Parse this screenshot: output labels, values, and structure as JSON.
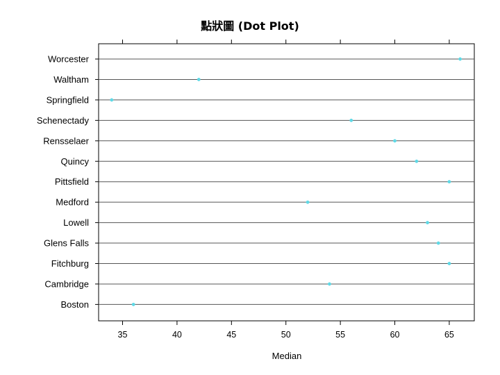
{
  "chart_data": {
    "type": "scatter",
    "title": "點狀圖 (Dot Plot)",
    "xlabel": "Median",
    "ylabel": "",
    "xlim": [
      32.8,
      67.3
    ],
    "x_ticks": [
      35,
      40,
      45,
      50,
      55,
      60,
      65
    ],
    "categories": [
      "Boston",
      "Cambridge",
      "Fitchburg",
      "Glens Falls",
      "Lowell",
      "Medford",
      "Pittsfield",
      "Quincy",
      "Rensselaer",
      "Schenectady",
      "Springfield",
      "Waltham",
      "Worcester"
    ],
    "values": [
      36,
      54,
      65,
      64,
      63,
      52,
      65,
      62,
      60,
      56,
      34,
      42,
      66
    ],
    "grid": true,
    "point_color": "#5fd9e6",
    "line_color": "#555555",
    "axis_color": "#000000"
  }
}
